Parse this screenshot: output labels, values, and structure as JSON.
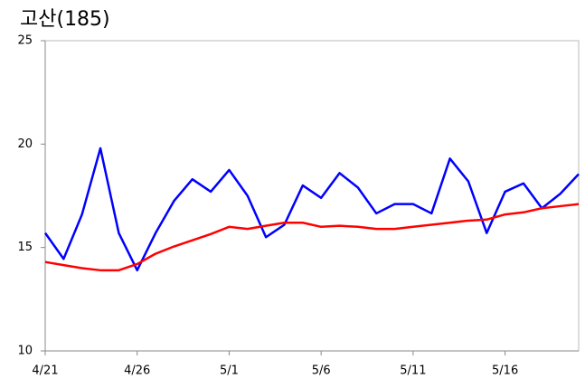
{
  "chart_data": {
    "type": "line",
    "title": "고산(185)",
    "categories": [
      "4/21",
      null,
      null,
      null,
      null,
      "4/26",
      null,
      null,
      null,
      null,
      "5/1",
      null,
      null,
      null,
      null,
      "5/6",
      null,
      null,
      null,
      null,
      "5/11",
      null,
      null,
      null,
      null,
      "5/16",
      null,
      null,
      null,
      null
    ],
    "series": [
      {
        "color": "#0000ff",
        "values": [
          15.7,
          14.45,
          16.6,
          19.8,
          15.7,
          13.9,
          15.7,
          17.25,
          18.3,
          17.7,
          18.75,
          17.5,
          15.5,
          16.1,
          18.0,
          17.4,
          18.6,
          17.9,
          16.65,
          17.1,
          17.1,
          16.65,
          19.3,
          18.2,
          15.7,
          17.7,
          18.1,
          16.9,
          17.6,
          18.55
        ]
      },
      {
        "color": "#ff0000",
        "values": [
          14.3,
          14.15,
          14.0,
          13.9,
          13.9,
          14.2,
          14.7,
          15.05,
          15.35,
          15.65,
          16.0,
          15.9,
          16.05,
          16.2,
          16.2,
          16.0,
          16.05,
          16.0,
          15.9,
          15.9,
          16.0,
          16.1,
          16.2,
          16.3,
          16.35,
          16.6,
          16.7,
          16.9,
          17.0,
          17.1
        ]
      }
    ],
    "ylim": [
      10,
      25
    ],
    "yticks": [
      10,
      15,
      20,
      25
    ],
    "grid": false
  }
}
